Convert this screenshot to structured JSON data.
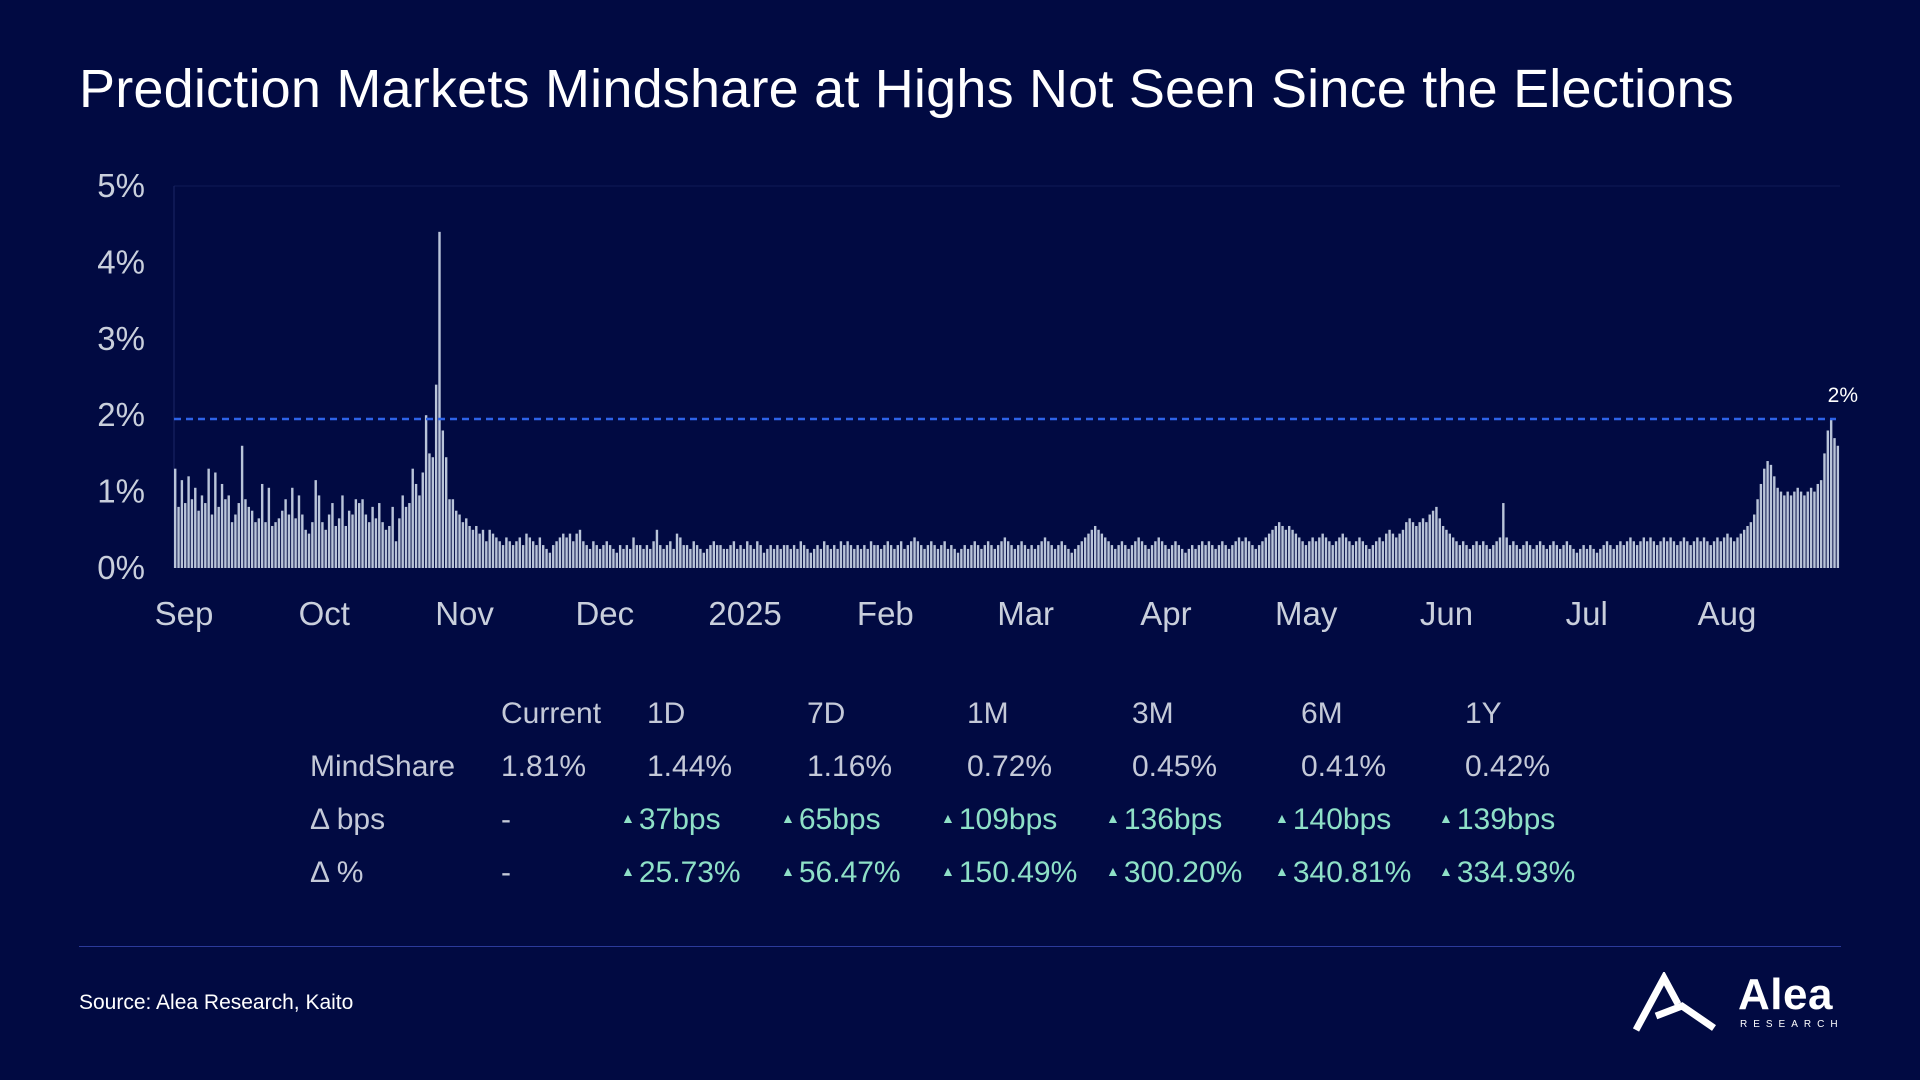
{
  "title": "Prediction Markets Mindshare at Highs Not Seen Since the Elections",
  "source": "Source: Alea Research, Kaito",
  "logo": {
    "name": "Alea",
    "sub": "RESEARCH"
  },
  "colors": {
    "background": "#010a42",
    "bars": "#b9c4d9",
    "reference_line": "#2e63e8",
    "positive": "#8ee0c7"
  },
  "chart_data": {
    "type": "bar",
    "title": "",
    "xlabel": "",
    "ylabel": "",
    "ylim": [
      0,
      5
    ],
    "y_ticks": [
      "0%",
      "1%",
      "2%",
      "3%",
      "4%",
      "5%"
    ],
    "x_ticks": [
      "Sep",
      "Oct",
      "Nov",
      "Dec",
      "2025",
      "Feb",
      "Mar",
      "Apr",
      "May",
      "Jun",
      "Jul",
      "Aug"
    ],
    "reference_line": {
      "value": 1.95,
      "label": "2%"
    },
    "grid": false,
    "unit": "%",
    "period": "daily, Sep 2024 – late Aug 2025",
    "series": [
      {
        "values": [
          1.3,
          0.8,
          1.15,
          0.85,
          1.2,
          0.9,
          1.05,
          0.75,
          0.95,
          0.85,
          1.3,
          0.7,
          1.25,
          0.8,
          1.1,
          0.9,
          0.95,
          0.6,
          0.7,
          0.85,
          1.6,
          0.9,
          0.8,
          0.75,
          0.6,
          0.65,
          1.1,
          0.6,
          1.05,
          0.55,
          0.6,
          0.65,
          0.75,
          0.9,
          0.7,
          1.05,
          0.65,
          0.95,
          0.7,
          0.5,
          0.45,
          0.6,
          1.15,
          0.95,
          0.6,
          0.5,
          0.7,
          0.85,
          0.55,
          0.65,
          0.95,
          0.55,
          0.75,
          0.7,
          0.9,
          0.85,
          0.9,
          0.7,
          0.6,
          0.8,
          0.65,
          0.85,
          0.6,
          0.5,
          0.55,
          0.8,
          0.35,
          0.65,
          0.95,
          0.8,
          0.85,
          1.3,
          1.1,
          0.95,
          1.25,
          2.0,
          1.5,
          1.45,
          2.4,
          4.4,
          1.8,
          1.45,
          0.9,
          0.9,
          0.75,
          0.7,
          0.6,
          0.65,
          0.55,
          0.5,
          0.55,
          0.45,
          0.5,
          0.35,
          0.5,
          0.45,
          0.4,
          0.35,
          0.3,
          0.4,
          0.35,
          0.3,
          0.35,
          0.4,
          0.3,
          0.45,
          0.4,
          0.35,
          0.3,
          0.4,
          0.3,
          0.25,
          0.2,
          0.3,
          0.35,
          0.4,
          0.45,
          0.4,
          0.45,
          0.35,
          0.45,
          0.5,
          0.35,
          0.3,
          0.25,
          0.35,
          0.3,
          0.25,
          0.3,
          0.35,
          0.3,
          0.25,
          0.2,
          0.3,
          0.25,
          0.3,
          0.25,
          0.4,
          0.3,
          0.3,
          0.25,
          0.3,
          0.25,
          0.35,
          0.5,
          0.3,
          0.25,
          0.3,
          0.35,
          0.25,
          0.45,
          0.4,
          0.3,
          0.3,
          0.25,
          0.35,
          0.3,
          0.25,
          0.2,
          0.25,
          0.3,
          0.35,
          0.3,
          0.3,
          0.25,
          0.25,
          0.3,
          0.35,
          0.25,
          0.3,
          0.25,
          0.35,
          0.3,
          0.25,
          0.35,
          0.3,
          0.2,
          0.25,
          0.3,
          0.25,
          0.3,
          0.25,
          0.3,
          0.3,
          0.25,
          0.3,
          0.25,
          0.35,
          0.3,
          0.25,
          0.2,
          0.25,
          0.3,
          0.25,
          0.35,
          0.3,
          0.25,
          0.3,
          0.25,
          0.35,
          0.3,
          0.35,
          0.3,
          0.25,
          0.3,
          0.25,
          0.3,
          0.25,
          0.35,
          0.3,
          0.3,
          0.25,
          0.3,
          0.35,
          0.3,
          0.25,
          0.3,
          0.35,
          0.25,
          0.3,
          0.35,
          0.4,
          0.35,
          0.3,
          0.25,
          0.3,
          0.35,
          0.3,
          0.25,
          0.3,
          0.35,
          0.25,
          0.3,
          0.25,
          0.2,
          0.25,
          0.3,
          0.25,
          0.3,
          0.35,
          0.3,
          0.25,
          0.3,
          0.35,
          0.3,
          0.25,
          0.3,
          0.35,
          0.4,
          0.35,
          0.3,
          0.25,
          0.3,
          0.35,
          0.3,
          0.25,
          0.3,
          0.25,
          0.3,
          0.35,
          0.4,
          0.35,
          0.3,
          0.25,
          0.3,
          0.35,
          0.3,
          0.25,
          0.2,
          0.25,
          0.3,
          0.35,
          0.4,
          0.45,
          0.5,
          0.55,
          0.5,
          0.45,
          0.4,
          0.35,
          0.3,
          0.25,
          0.3,
          0.35,
          0.3,
          0.25,
          0.3,
          0.35,
          0.4,
          0.35,
          0.3,
          0.25,
          0.3,
          0.35,
          0.4,
          0.35,
          0.3,
          0.25,
          0.3,
          0.35,
          0.3,
          0.25,
          0.2,
          0.25,
          0.3,
          0.25,
          0.3,
          0.35,
          0.3,
          0.35,
          0.3,
          0.25,
          0.3,
          0.35,
          0.3,
          0.25,
          0.3,
          0.35,
          0.4,
          0.35,
          0.4,
          0.35,
          0.3,
          0.25,
          0.3,
          0.35,
          0.4,
          0.45,
          0.5,
          0.55,
          0.6,
          0.55,
          0.5,
          0.55,
          0.5,
          0.45,
          0.4,
          0.35,
          0.3,
          0.35,
          0.4,
          0.35,
          0.4,
          0.45,
          0.4,
          0.35,
          0.3,
          0.35,
          0.4,
          0.45,
          0.4,
          0.35,
          0.3,
          0.35,
          0.4,
          0.35,
          0.3,
          0.25,
          0.3,
          0.35,
          0.4,
          0.35,
          0.45,
          0.5,
          0.45,
          0.4,
          0.45,
          0.5,
          0.6,
          0.65,
          0.6,
          0.55,
          0.6,
          0.65,
          0.6,
          0.7,
          0.75,
          0.8,
          0.65,
          0.55,
          0.5,
          0.45,
          0.4,
          0.35,
          0.3,
          0.35,
          0.3,
          0.25,
          0.3,
          0.35,
          0.3,
          0.35,
          0.3,
          0.25,
          0.3,
          0.35,
          0.4,
          0.85,
          0.4,
          0.3,
          0.35,
          0.3,
          0.25,
          0.3,
          0.35,
          0.3,
          0.25,
          0.3,
          0.35,
          0.3,
          0.25,
          0.3,
          0.35,
          0.3,
          0.25,
          0.3,
          0.35,
          0.3,
          0.25,
          0.2,
          0.25,
          0.3,
          0.25,
          0.3,
          0.25,
          0.2,
          0.25,
          0.3,
          0.35,
          0.3,
          0.25,
          0.3,
          0.35,
          0.3,
          0.35,
          0.4,
          0.35,
          0.3,
          0.35,
          0.4,
          0.35,
          0.4,
          0.35,
          0.3,
          0.35,
          0.4,
          0.35,
          0.4,
          0.35,
          0.3,
          0.35,
          0.4,
          0.35,
          0.3,
          0.35,
          0.4,
          0.35,
          0.4,
          0.35,
          0.3,
          0.35,
          0.4,
          0.35,
          0.4,
          0.45,
          0.4,
          0.35,
          0.4,
          0.45,
          0.5,
          0.55,
          0.6,
          0.7,
          0.9,
          1.1,
          1.3,
          1.4,
          1.35,
          1.2,
          1.05,
          1.0,
          0.95,
          1.0,
          0.95,
          1.0,
          1.05,
          1.0,
          0.95,
          1.0,
          1.05,
          1.0,
          1.1,
          1.15,
          1.5,
          1.8,
          1.95,
          1.7,
          1.6
        ]
      }
    ]
  },
  "stats_table": {
    "columns": [
      "",
      "Current",
      "1D",
      "7D",
      "1M",
      "3M",
      "6M",
      "1Y"
    ],
    "rows": [
      {
        "label": "MindShare",
        "cells": [
          {
            "text": "1.81%",
            "up": false
          },
          {
            "text": "1.44%",
            "up": false
          },
          {
            "text": "1.16%",
            "up": false
          },
          {
            "text": "0.72%",
            "up": false
          },
          {
            "text": "0.45%",
            "up": false
          },
          {
            "text": "0.41%",
            "up": false
          },
          {
            "text": "0.42%",
            "up": false
          }
        ]
      },
      {
        "label": "Δ bps",
        "cells": [
          {
            "text": "-",
            "up": false
          },
          {
            "text": "37bps",
            "up": true
          },
          {
            "text": "65bps",
            "up": true
          },
          {
            "text": "109bps",
            "up": true
          },
          {
            "text": "136bps",
            "up": true
          },
          {
            "text": "140bps",
            "up": true
          },
          {
            "text": "139bps",
            "up": true
          }
        ]
      },
      {
        "label": "Δ %",
        "cells": [
          {
            "text": "-",
            "up": false
          },
          {
            "text": "25.73%",
            "up": true
          },
          {
            "text": "56.47%",
            "up": true
          },
          {
            "text": "150.49%",
            "up": true
          },
          {
            "text": "300.20%",
            "up": true
          },
          {
            "text": "340.81%",
            "up": true
          },
          {
            "text": "334.93%",
            "up": true
          }
        ]
      }
    ]
  }
}
